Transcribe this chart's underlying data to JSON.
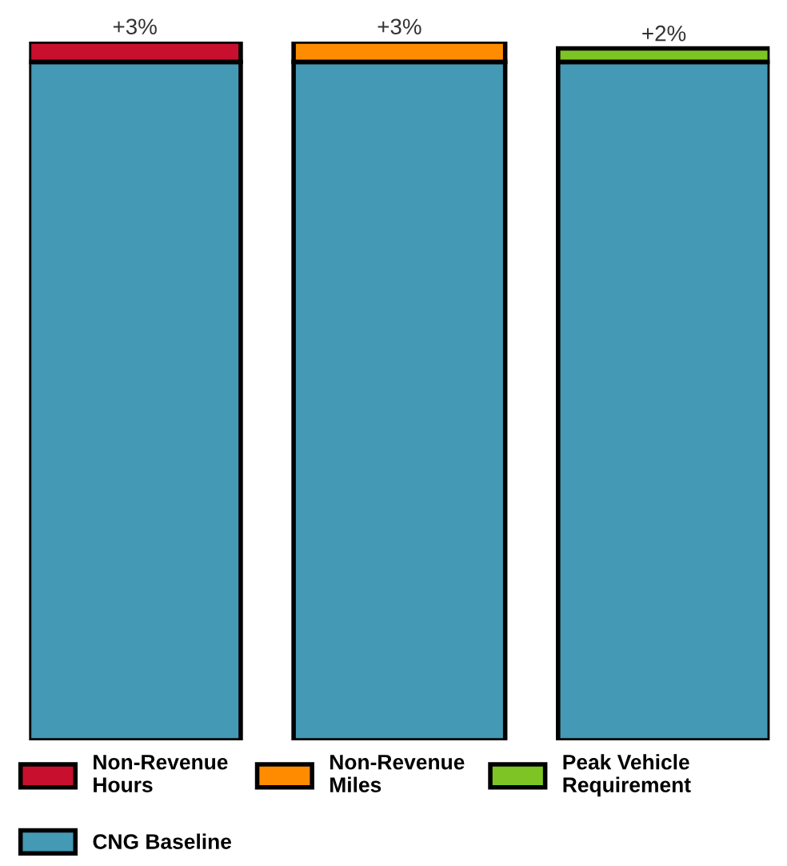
{
  "chart_data": {
    "type": "bar",
    "stacked": true,
    "tick_labels": false,
    "categories": [
      null,
      null,
      null
    ],
    "series": [
      {
        "name": "CNG Baseline",
        "color": "#4499b4",
        "values": [
          100,
          100,
          100
        ]
      },
      {
        "name": "Non-Revenue\nHours",
        "color": "#c8102e",
        "values": [
          3,
          null,
          null
        ],
        "value_labels": [
          "+3%",
          null,
          null
        ]
      },
      {
        "name": "Non-Revenue\nMiles",
        "color": "#ff8c00",
        "values": [
          null,
          3,
          null
        ],
        "value_labels": [
          null,
          "+3%",
          null
        ]
      },
      {
        "name": "Peak Vehicle\nRequirement",
        "color": "#7dc424",
        "values": [
          null,
          null,
          2
        ],
        "value_labels": [
          null,
          null,
          "+2%"
        ]
      }
    ],
    "legend": "bottom",
    "grid": false
  }
}
